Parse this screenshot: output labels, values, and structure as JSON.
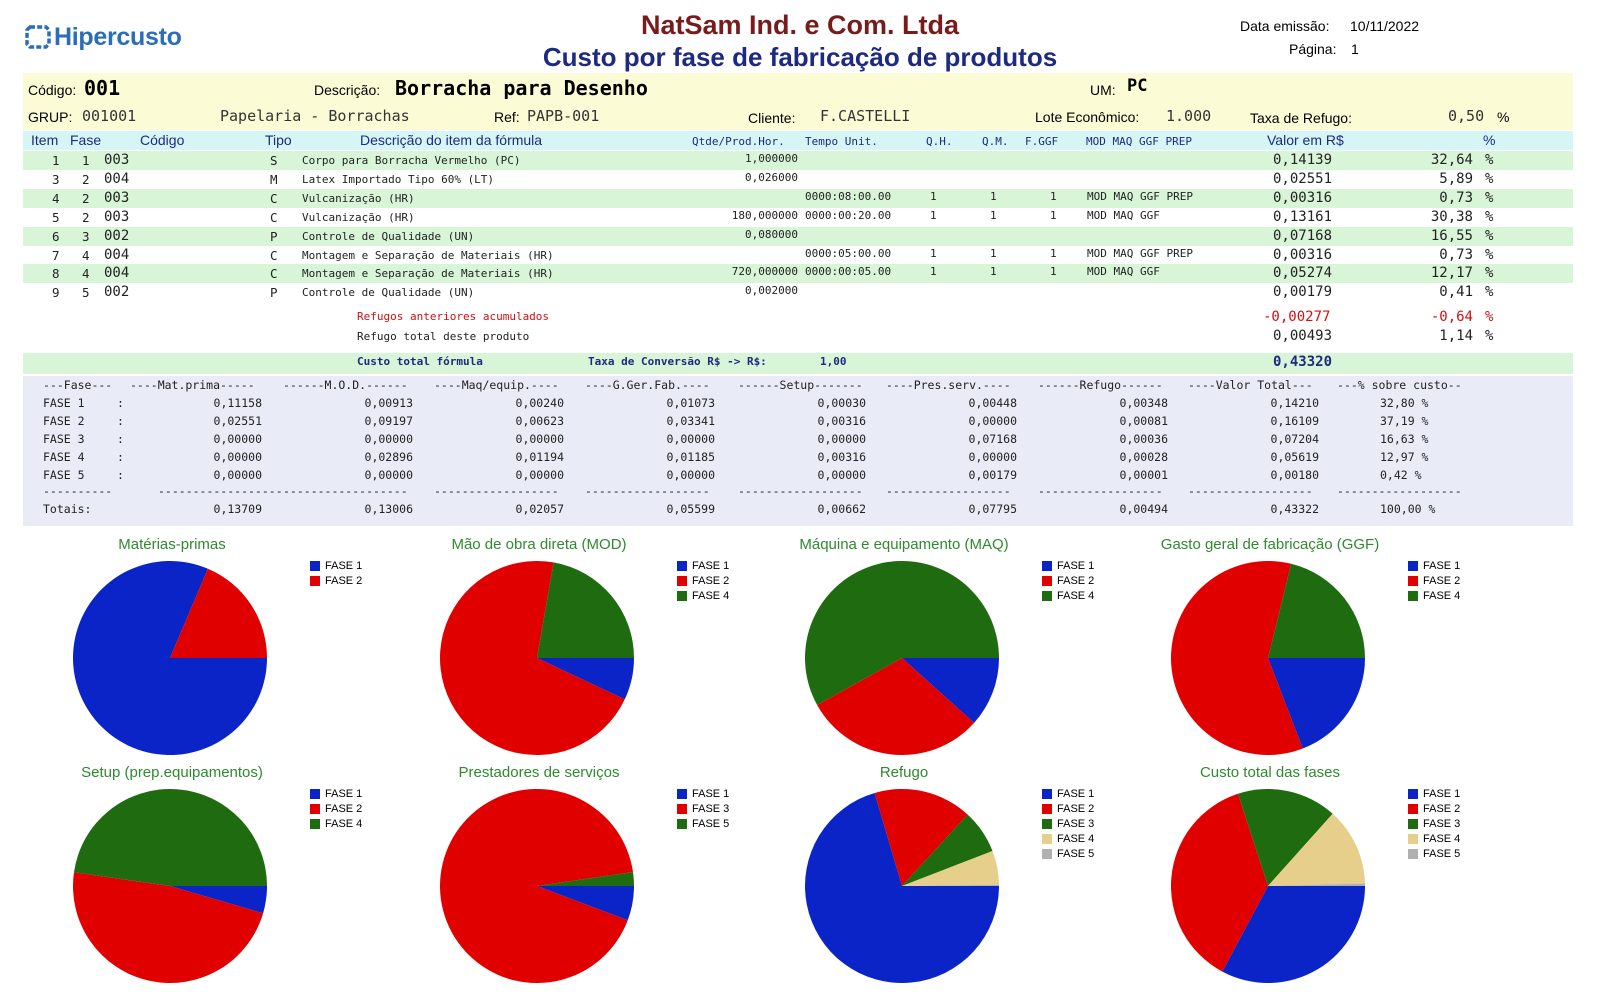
{
  "header": {
    "logo_text": "Hipercusto",
    "company": "NatSam Ind. e Com. Ltda",
    "title": "Custo por fase de fabricação de produtos",
    "date_label": "Data emissão:",
    "date_value": "10/11/2022",
    "page_label": "Página:",
    "page_value": "1"
  },
  "product": {
    "codigo_label": "Código:",
    "codigo": "001",
    "descricao_label": "Descrição:",
    "descricao": "Borracha para Desenho",
    "um_label": "UM:",
    "um": "PC",
    "grup_label": "GRUP:",
    "grup": "001001",
    "grup_desc": "Papelaria - Borrachas",
    "ref_label": "Ref:",
    "ref": "PAPB-001",
    "cliente_label": "Cliente:",
    "cliente": "F.CASTELLI",
    "lote_label": "Lote Econômico:",
    "lote": "1.000",
    "refugo_label": "Taxa de Refugo:",
    "refugo": "0,50",
    "refugo_unit": "%"
  },
  "table_header": {
    "item": "Item",
    "fase": "Fase",
    "codigo": "Código",
    "tipo": "Tipo",
    "descricao": "Descrição do item da fórmula",
    "qtde": "Qtde/Prod.Hor.",
    "tempo": "Tempo Unit.",
    "qh": "Q.H.",
    "qm": "Q.M.",
    "fggf": "F.GGF",
    "flags": "MOD MAQ GGF PREP",
    "valor": "Valor em R$",
    "pct": "%"
  },
  "rows": [
    {
      "item": "1",
      "fase": "1",
      "codigo": "003",
      "tipo": "S",
      "descricao": "Corpo para Borracha Vermelho (PC)",
      "qtde": "1,000000",
      "tempo": "",
      "qh": "",
      "qm": "",
      "fggf": "",
      "flags": "",
      "valor": "0,14139",
      "pct": "32,64",
      "pu": "%"
    },
    {
      "item": "3",
      "fase": "2",
      "codigo": "004",
      "tipo": "M",
      "descricao": "Latex Importado Tipo 60% (LT)",
      "qtde": "0,026000",
      "tempo": "",
      "qh": "",
      "qm": "",
      "fggf": "",
      "flags": "",
      "valor": "0,02551",
      "pct": "5,89",
      "pu": "%"
    },
    {
      "item": "4",
      "fase": "2",
      "codigo": "003",
      "tipo": "C",
      "descricao": "Vulcanização (HR)",
      "qtde": "",
      "tempo": "0000:08:00.00",
      "qh": "1",
      "qm": "1",
      "fggf": "1",
      "flags": "MOD MAQ GGF PREP",
      "valor": "0,00316",
      "pct": "0,73",
      "pu": "%"
    },
    {
      "item": "5",
      "fase": "2",
      "codigo": "003",
      "tipo": "C",
      "descricao": "Vulcanização (HR)",
      "qtde": "180,000000",
      "tempo": "0000:00:20.00",
      "qh": "1",
      "qm": "1",
      "fggf": "1",
      "flags": "MOD MAQ GGF",
      "valor": "0,13161",
      "pct": "30,38",
      "pu": "%"
    },
    {
      "item": "6",
      "fase": "3",
      "codigo": "002",
      "tipo": "P",
      "descricao": "Controle de Qualidade (UN)",
      "qtde": "0,080000",
      "tempo": "",
      "qh": "",
      "qm": "",
      "fggf": "",
      "flags": "",
      "valor": "0,07168",
      "pct": "16,55",
      "pu": "%"
    },
    {
      "item": "7",
      "fase": "4",
      "codigo": "004",
      "tipo": "C",
      "descricao": "Montagem e Separação de Materiais (HR)",
      "qtde": "",
      "tempo": "0000:05:00.00",
      "qh": "1",
      "qm": "1",
      "fggf": "1",
      "flags": "MOD MAQ GGF PREP",
      "valor": "0,00316",
      "pct": "0,73",
      "pu": "%"
    },
    {
      "item": "8",
      "fase": "4",
      "codigo": "004",
      "tipo": "C",
      "descricao": "Montagem e Separação de Materiais (HR)",
      "qtde": "720,000000",
      "tempo": "0000:00:05.00",
      "qh": "1",
      "qm": "1",
      "fggf": "1",
      "flags": "MOD MAQ GGF",
      "valor": "0,05274",
      "pct": "12,17",
      "pu": "%"
    },
    {
      "item": "9",
      "fase": "5",
      "codigo": "002",
      "tipo": "P",
      "descricao": "Controle de Qualidade (UN)",
      "qtde": "0,002000",
      "tempo": "",
      "qh": "",
      "qm": "",
      "fggf": "",
      "flags": "",
      "valor": "0,00179",
      "pct": "0,41",
      "pu": "%"
    }
  ],
  "refugos": {
    "label": "Refugos anteriores acumulados",
    "valor": "-0,00277",
    "pct": "-0,64",
    "pu": "%"
  },
  "refugo_total": {
    "label": "Refugo total deste produto",
    "valor": "0,00493",
    "pct": "1,14",
    "pu": "%"
  },
  "total": {
    "label": "Custo total fórmula",
    "taxa_label": "Taxa de Conversão R$ -> R$:",
    "taxa": "1,00",
    "valor": "0,43320"
  },
  "summary": {
    "header": [
      "---Fase---",
      "----Mat.prima-----",
      "------M.O.D.------",
      "----Maq/equip.----",
      "----G.Ger.Fab.----",
      "------Setup-------",
      "----Pres.serv.----",
      "------Refugo------",
      "----Valor Total---",
      "---% sobre custo--"
    ],
    "rows": [
      [
        "FASE 1",
        "0,11158",
        "0,00913",
        "0,00240",
        "0,01073",
        "0,00030",
        "0,00448",
        "0,00348",
        "0,14210",
        "32,80 %"
      ],
      [
        "FASE 2",
        "0,02551",
        "0,09197",
        "0,00623",
        "0,03341",
        "0,00316",
        "0,00000",
        "0,00081",
        "0,16109",
        "37,19 %"
      ],
      [
        "FASE 3",
        "0,00000",
        "0,00000",
        "0,00000",
        "0,00000",
        "0,00000",
        "0,07168",
        "0,00036",
        "0,07204",
        "16,63 %"
      ],
      [
        "FASE 4",
        "0,00000",
        "0,02896",
        "0,01194",
        "0,01185",
        "0,00316",
        "0,00000",
        "0,00028",
        "0,05619",
        "12,97 %"
      ],
      [
        "FASE 5",
        "0,00000",
        "0,00000",
        "0,00000",
        "0,00000",
        "0,00000",
        "0,00179",
        "0,00001",
        "0,00180",
        "0,42 %"
      ]
    ],
    "colon": ":",
    "separator": [
      "----------",
      "------------------",
      "------------------",
      "------------------",
      "------------------",
      "------------------",
      "------------------",
      "------------------",
      "------------------",
      "------------------"
    ],
    "totals": [
      "Totais:",
      "0,13709",
      "0,13006",
      "0,02057",
      "0,05599",
      "0,00662",
      "0,07795",
      "0,00494",
      "0,43322",
      "100,00 %"
    ]
  },
  "colors": {
    "FASE 1": "#0a24c8",
    "FASE 2": "#e00000",
    "FASE 3": "#1e6b10",
    "FASE 4": "#1e6b10",
    "FASE 5": "#1e6b10",
    "tan": "#e6cf8a",
    "grey": "#b0b0b0"
  },
  "chart_data": [
    {
      "type": "pie",
      "title": "Matérias-primas",
      "series": [
        {
          "name": "FASE 1",
          "value": 0.11158,
          "color": "#0a24c8"
        },
        {
          "name": "FASE 2",
          "value": 0.02551,
          "color": "#e00000"
        }
      ]
    },
    {
      "type": "pie",
      "title": "Mão de obra direta (MOD)",
      "series": [
        {
          "name": "FASE 1",
          "value": 0.00913,
          "color": "#0a24c8"
        },
        {
          "name": "FASE 2",
          "value": 0.09197,
          "color": "#e00000"
        },
        {
          "name": "FASE 4",
          "value": 0.02896,
          "color": "#1e6b10"
        }
      ]
    },
    {
      "type": "pie",
      "title": "Máquina e equipamento (MAQ)",
      "series": [
        {
          "name": "FASE 1",
          "value": 0.0024,
          "color": "#0a24c8"
        },
        {
          "name": "FASE 2",
          "value": 0.00623,
          "color": "#e00000"
        },
        {
          "name": "FASE 4",
          "value": 0.01194,
          "color": "#1e6b10"
        }
      ]
    },
    {
      "type": "pie",
      "title": "Gasto geral de fabricação (GGF)",
      "series": [
        {
          "name": "FASE 1",
          "value": 0.01073,
          "color": "#0a24c8"
        },
        {
          "name": "FASE 2",
          "value": 0.03341,
          "color": "#e00000"
        },
        {
          "name": "FASE 4",
          "value": 0.01185,
          "color": "#1e6b10"
        }
      ]
    },
    {
      "type": "pie",
      "title": "Setup (prep.equipamentos)",
      "series": [
        {
          "name": "FASE 1",
          "value": 0.0003,
          "color": "#0a24c8"
        },
        {
          "name": "FASE 2",
          "value": 0.00316,
          "color": "#e00000"
        },
        {
          "name": "FASE 4",
          "value": 0.00316,
          "color": "#1e6b10"
        }
      ]
    },
    {
      "type": "pie",
      "title": "Prestadores de serviços",
      "series": [
        {
          "name": "FASE 1",
          "value": 0.00448,
          "color": "#0a24c8"
        },
        {
          "name": "FASE 3",
          "value": 0.07168,
          "color": "#e00000"
        },
        {
          "name": "FASE 5",
          "value": 0.00179,
          "color": "#1e6b10"
        }
      ]
    },
    {
      "type": "pie",
      "title": "Refugo",
      "series": [
        {
          "name": "FASE 1",
          "value": 0.00348,
          "color": "#0a24c8"
        },
        {
          "name": "FASE 2",
          "value": 0.00081,
          "color": "#e00000"
        },
        {
          "name": "FASE 3",
          "value": 0.00036,
          "color": "#1e6b10"
        },
        {
          "name": "FASE 4",
          "value": 0.00028,
          "color": "#e6cf8a"
        },
        {
          "name": "FASE 5",
          "value": 1e-05,
          "color": "#b0b0b0"
        }
      ]
    },
    {
      "type": "pie",
      "title": "Custo total das fases",
      "series": [
        {
          "name": "FASE 1",
          "value": 0.1421,
          "color": "#0a24c8"
        },
        {
          "name": "FASE 2",
          "value": 0.16109,
          "color": "#e00000"
        },
        {
          "name": "FASE 3",
          "value": 0.07204,
          "color": "#1e6b10"
        },
        {
          "name": "FASE 4",
          "value": 0.05619,
          "color": "#e6cf8a"
        },
        {
          "name": "FASE 5",
          "value": 0.0018,
          "color": "#b0b0b0"
        }
      ]
    }
  ]
}
